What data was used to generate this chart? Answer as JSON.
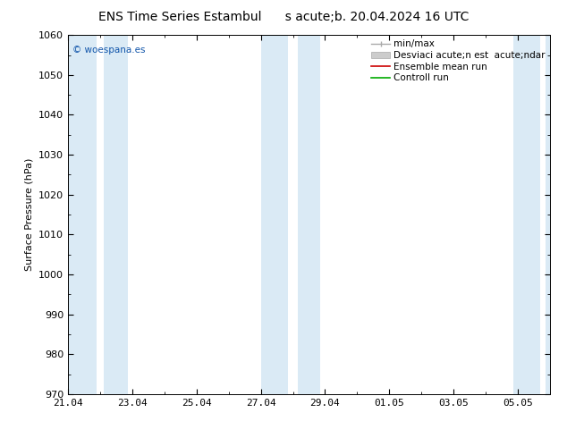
{
  "title_part1": "ENS Time Series Estambul",
  "title_part2": "s acute;b. 20.04.2024 16 UTC",
  "ylabel": "Surface Pressure (hPa)",
  "ylim": [
    970,
    1060
  ],
  "yticks": [
    970,
    980,
    990,
    1000,
    1010,
    1020,
    1030,
    1040,
    1050,
    1060
  ],
  "xtick_labels": [
    "21.04",
    "23.04",
    "25.04",
    "27.04",
    "29.04",
    "01.05",
    "03.05",
    "05.05"
  ],
  "xtick_positions": [
    0,
    2,
    4,
    6,
    8,
    10,
    12,
    14
  ],
  "x_total_days": 15,
  "shaded_bands": [
    {
      "xmin": 0.0,
      "xmax": 0.9,
      "color": "#daeaf5"
    },
    {
      "xmin": 1.1,
      "xmax": 1.85,
      "color": "#daeaf5"
    },
    {
      "xmin": 6.0,
      "xmax": 6.85,
      "color": "#daeaf5"
    },
    {
      "xmin": 7.15,
      "xmax": 7.85,
      "color": "#daeaf5"
    },
    {
      "xmin": 13.85,
      "xmax": 14.7,
      "color": "#daeaf5"
    },
    {
      "xmin": 14.85,
      "xmax": 15.0,
      "color": "#daeaf5"
    }
  ],
  "background_color": "#ffffff",
  "plot_bg_color": "#ffffff",
  "watermark": "© woespana.es",
  "watermark_color": "#1155aa",
  "axis_color": "#000000",
  "title_fontsize": 10,
  "label_fontsize": 8,
  "tick_fontsize": 8,
  "legend_fontsize": 7.5
}
